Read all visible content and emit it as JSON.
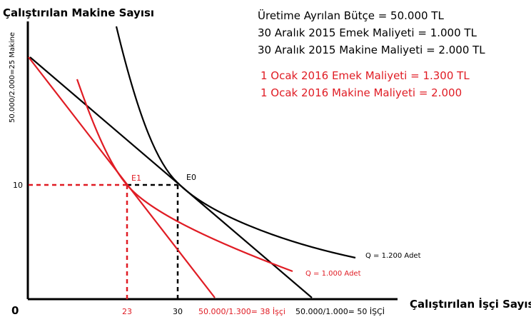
{
  "colors": {
    "black": "#000000",
    "red": "#e01c24",
    "white": "#ffffff"
  },
  "y_axis_title": "Çalıştırılan Makine Sayısı",
  "x_axis_title": "Çalıştırılan İşçi Sayısı",
  "y_intercept_label": "50.000/2.000=25 Makine",
  "origin_label": "0",
  "y_tick_label": "10",
  "x_tick_labels": [
    "23",
    "30"
  ],
  "x_intercept_labels": {
    "red": "50.000/1.300= 38 İşçi",
    "black": "50.000/1.000= 50 İŞÇİ"
  },
  "point_labels": {
    "e0": "E0",
    "e1": "E1"
  },
  "curve_labels": {
    "q1200": "Q = 1.200 Adet",
    "q1000": "Q = 1.000 Adet"
  },
  "info_black": [
    "Üretime Ayrılan Bütçe = 50.000 TL",
    "30 Aralık 2015 Emek Maliyeti = 1.000 TL",
    "30 Aralık 2015 Makine Maliyeti = 2.000 TL"
  ],
  "info_red": [
    "1 Ocak 2016 Emek Maliyeti = 1.300 TL",
    "1 Ocak 2016 Makine Maliyeti = 2.000"
  ]
}
